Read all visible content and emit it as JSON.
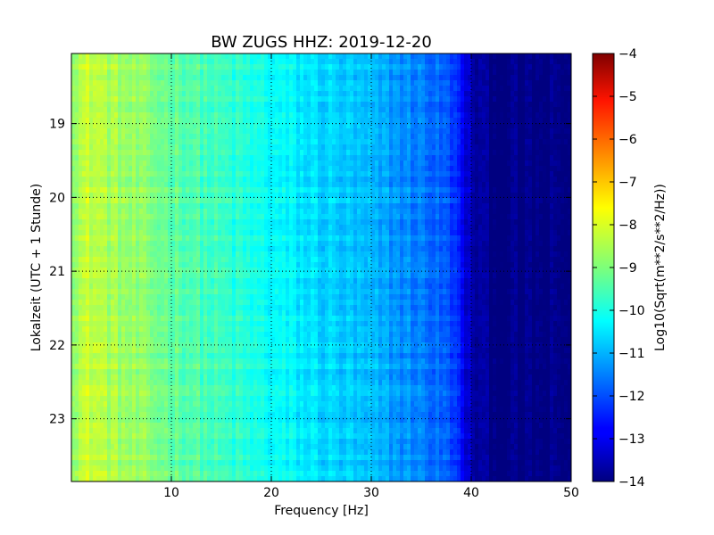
{
  "chart_data": {
    "type": "heatmap",
    "title": "BW ZUGS HHZ: 2019-12-20",
    "xlabel": "Frequency [Hz]",
    "ylabel": "Lokalzeit (UTC + 1 Stunde)",
    "xlim": [
      0,
      50
    ],
    "ylim": [
      18.05,
      23.85
    ],
    "y_inverted": true,
    "xticks": [
      10,
      20,
      30,
      40,
      50
    ],
    "xtick_labels": [
      "10",
      "20",
      "30",
      "40",
      "50"
    ],
    "yticks": [
      19,
      20,
      21,
      22,
      23
    ],
    "ytick_labels": [
      "19",
      "20",
      "21",
      "22",
      "23"
    ],
    "grid": true,
    "colorbar": {
      "label": "Log10(Sqrt(m**2/s**2/Hz))",
      "range": [
        -14,
        -4
      ],
      "ticks": [
        -4,
        -5,
        -6,
        -7,
        -8,
        -9,
        -10,
        -11,
        -12,
        -13,
        -14
      ],
      "tick_labels": [
        "−4",
        "−5",
        "−6",
        "−7",
        "−8",
        "−9",
        "−10",
        "−11",
        "−12",
        "−13",
        "−14"
      ],
      "colormap": "jet"
    },
    "spectral_profile": {
      "frequency_hz": [
        0,
        2,
        5,
        10,
        15,
        20,
        25,
        30,
        35,
        38,
        40,
        42,
        50
      ],
      "log10_amplitude": [
        -8.6,
        -8.3,
        -8.7,
        -9.2,
        -9.7,
        -10.2,
        -10.6,
        -11.0,
        -11.5,
        -12.0,
        -13.5,
        -14.0,
        -14.0
      ]
    }
  }
}
